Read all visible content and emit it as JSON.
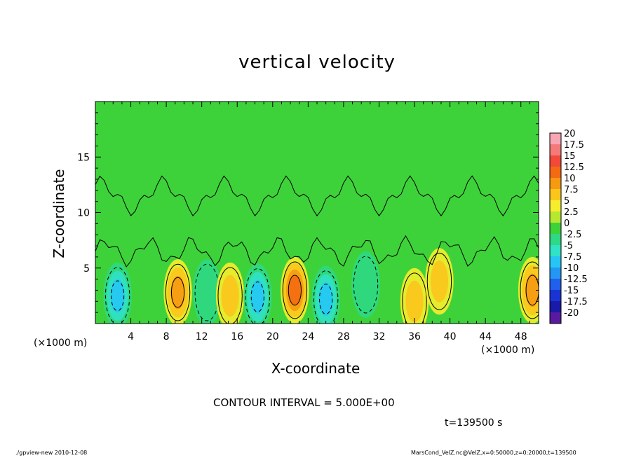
{
  "chart_data": {
    "type": "heatmap",
    "title": "vertical velocity",
    "xlabel": "X-coordinate",
    "ylabel": "Z-coordinate",
    "x_unit_label": "(×1000 m)",
    "xlim": [
      0,
      50
    ],
    "ylim": [
      0,
      20
    ],
    "x_ticks": [
      4,
      8,
      12,
      16,
      20,
      24,
      28,
      32,
      36,
      40,
      44,
      48
    ],
    "y_ticks": [
      5,
      10,
      15
    ],
    "colorbar": {
      "labels": [
        "20",
        "17.5",
        "15",
        "12.5",
        "10",
        "7.5",
        "5",
        "2.5",
        "0",
        "-2.5",
        "-5",
        "-7.5",
        "-10",
        "-12.5",
        "-15",
        "-17.5",
        "-20"
      ],
      "colors": [
        "#f9a6b4",
        "#f47a7a",
        "#f24a3a",
        "#f46a12",
        "#f69a12",
        "#fbc61c",
        "#f6ee2c",
        "#b6e830",
        "#3ed23a",
        "#2ed884",
        "#30e2c6",
        "#26c6f4",
        "#2496f4",
        "#2060ec",
        "#1a34d4",
        "#1a1aa8",
        "#5a1aa0"
      ]
    },
    "cells": [
      {
        "x": 2.5,
        "z": 2.5,
        "w": -8
      },
      {
        "x": 9.3,
        "z": 2.8,
        "w": 8
      },
      {
        "x": 12.6,
        "z": 2.8,
        "w": -4
      },
      {
        "x": 15.2,
        "z": 2.5,
        "w": 7
      },
      {
        "x": 18.3,
        "z": 2.4,
        "w": -9
      },
      {
        "x": 22.5,
        "z": 3.0,
        "w": 12
      },
      {
        "x": 26.0,
        "z": 2.2,
        "w": -8
      },
      {
        "x": 30.5,
        "z": 3.5,
        "w": -3
      },
      {
        "x": 36.0,
        "z": 2.0,
        "w": 5
      },
      {
        "x": 38.8,
        "z": 3.8,
        "w": 6
      },
      {
        "x": 49.3,
        "z": 3.0,
        "w": 8
      }
    ]
  },
  "contour_interval_label": "CONTOUR INTERVAL = 5.000E+00",
  "time_label": "t=139500 s",
  "footer": {
    "left": "./gpview-new  2010-12-08",
    "right": "MarsCond_VelZ.nc@VelZ,x=0:50000,z=0:20000,t=139500"
  }
}
